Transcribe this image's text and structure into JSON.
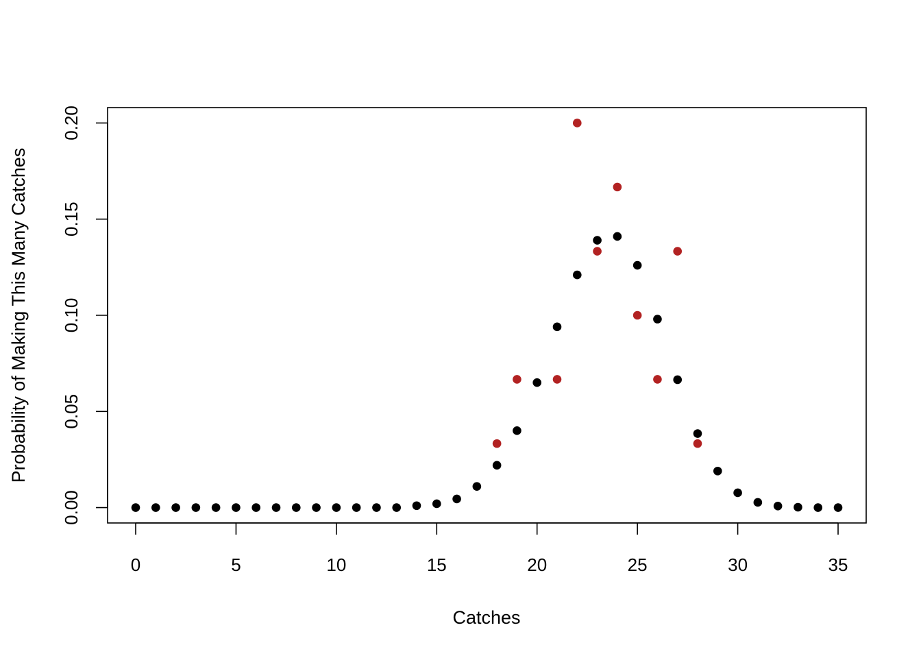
{
  "chart_data": {
    "type": "scatter",
    "title": "",
    "xlabel": "Catches",
    "ylabel": "Probability of Making This Many Catches",
    "xlim": [
      -1.4,
      36.4
    ],
    "ylim": [
      -0.008,
      0.208
    ],
    "xticks": [
      0,
      5,
      10,
      15,
      20,
      25,
      30,
      35
    ],
    "xtick_labels": [
      "0",
      "5",
      "10",
      "15",
      "20",
      "25",
      "30",
      "35"
    ],
    "yticks": [
      0,
      0.05,
      0.1,
      0.15,
      0.2
    ],
    "ytick_labels": [
      "0.00",
      "0.05",
      "0.10",
      "0.15",
      "0.20"
    ],
    "grid": false,
    "legend": "none",
    "series": [
      {
        "color": "#000000",
        "points": [
          [
            0,
            0
          ],
          [
            1,
            0
          ],
          [
            2,
            0
          ],
          [
            3,
            0
          ],
          [
            4,
            0
          ],
          [
            5,
            0
          ],
          [
            6,
            0
          ],
          [
            7,
            0
          ],
          [
            8,
            0
          ],
          [
            9,
            0
          ],
          [
            10,
            0
          ],
          [
            11,
            0
          ],
          [
            12,
            0
          ],
          [
            13,
            0
          ],
          [
            14,
            0.001
          ],
          [
            15,
            0.002
          ],
          [
            16,
            0.0045
          ],
          [
            17,
            0.011
          ],
          [
            18,
            0.022
          ],
          [
            19,
            0.04
          ],
          [
            20,
            0.065
          ],
          [
            21,
            0.094
          ],
          [
            22,
            0.121
          ],
          [
            23,
            0.139
          ],
          [
            24,
            0.141
          ],
          [
            25,
            0.126
          ],
          [
            26,
            0.098
          ],
          [
            27,
            0.0665
          ],
          [
            28,
            0.0385
          ],
          [
            29,
            0.019
          ],
          [
            30,
            0.0077
          ],
          [
            31,
            0.0027
          ],
          [
            32,
            0.0008
          ],
          [
            33,
            0.0002
          ],
          [
            34,
            0
          ],
          [
            35,
            0
          ]
        ]
      },
      {
        "color": "#b22222",
        "points": [
          [
            18,
            0.0333
          ],
          [
            19,
            0.0667
          ],
          [
            21,
            0.0667
          ],
          [
            22,
            0.2
          ],
          [
            23,
            0.1333
          ],
          [
            24,
            0.1667
          ],
          [
            25,
            0.1
          ],
          [
            26,
            0.0667
          ],
          [
            27,
            0.1333
          ],
          [
            28,
            0.0333
          ]
        ]
      }
    ]
  }
}
